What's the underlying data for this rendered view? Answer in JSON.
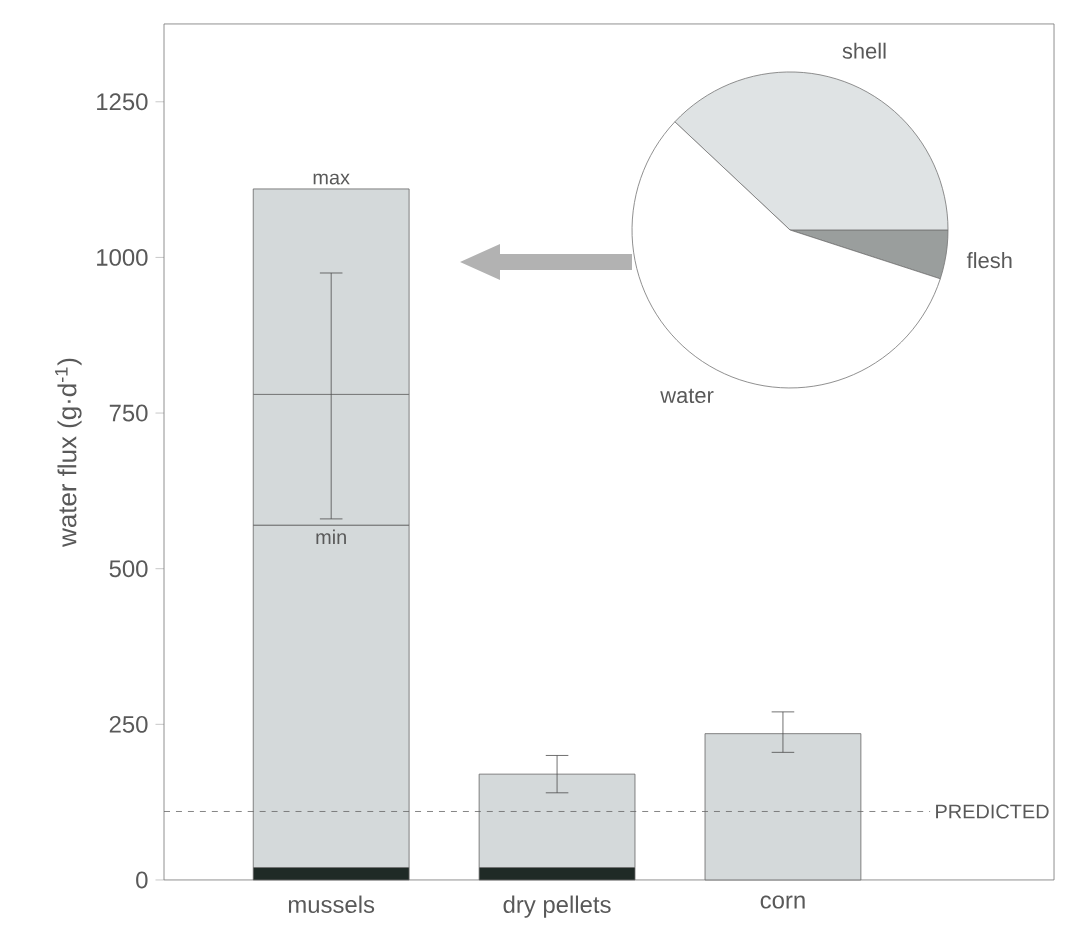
{
  "chart_data": [
    {
      "type": "bar",
      "stacked": true,
      "ylabel": "water flux (g·d$^{-1}$)",
      "categories": [
        "mussels",
        "dry pellets",
        "corn"
      ],
      "series": [
        {
          "color": "#1f2a26",
          "values": [
            20,
            20,
            null
          ]
        },
        {
          "color": "#d4d9da",
          "values": [
            550,
            150,
            235
          ],
          "errors": [
            null,
            [
              140,
              200
            ],
            [
              205,
              270
            ]
          ]
        },
        {
          "color": "#d4d9da",
          "values": [
            210,
            null,
            null
          ],
          "errors": [
            [
              580,
              975
            ],
            null,
            null
          ]
        },
        {
          "color": "#d4d9da",
          "values": [
            330,
            null,
            null
          ]
        }
      ],
      "ylim": [
        0,
        1375
      ],
      "yticks": [
        0,
        250,
        500,
        750,
        1000,
        1250
      ],
      "ref_lines": [
        {
          "axis": "y",
          "value": 110,
          "label": "PREDICTED",
          "line_style": "dashed"
        }
      ],
      "annotations": [
        {
          "text": "max",
          "x": "mussels",
          "y": 1110
        },
        {
          "text": "min",
          "x": "mussels",
          "y": 570
        }
      ]
    },
    {
      "type": "pie",
      "categories": [
        "flesh",
        "shell",
        "water"
      ],
      "values": [
        5,
        38,
        57
      ],
      "colors": [
        "#9a9e9d",
        "#dfe3e4",
        "#ffffff"
      ]
    }
  ]
}
